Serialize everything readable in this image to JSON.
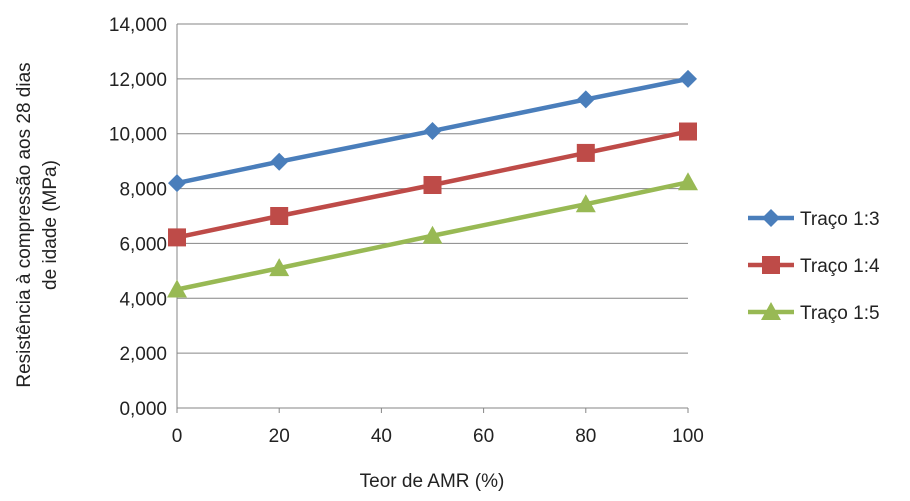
{
  "chart_data": {
    "type": "line",
    "title": "",
    "xlabel": "Teor de AMR (%)",
    "ylabel_lines": [
      "Resistência à compressão aos 28 dias",
      "de idade (MPa)"
    ],
    "x": [
      0,
      20,
      50,
      80,
      100
    ],
    "x_ticks": [
      "0",
      "20",
      "40",
      "60",
      "80",
      "100"
    ],
    "y_ticks": [
      "0,000",
      "2,000",
      "4,000",
      "6,000",
      "8,000",
      "10,000",
      "12,000",
      "14,000"
    ],
    "ylim": [
      0,
      14000
    ],
    "xlim": [
      0,
      100
    ],
    "grid": "horizontal",
    "legend_position": "right",
    "series": [
      {
        "name": "Traço 1:3",
        "color": "#4a7ebb",
        "marker": "diamond",
        "values": [
          8200,
          8980,
          10100,
          11250,
          12000
        ]
      },
      {
        "name": "Traço 1:4",
        "color": "#be4b48",
        "marker": "square",
        "values": [
          6220,
          7000,
          8130,
          9300,
          10080
        ]
      },
      {
        "name": "Traço 1:5",
        "color": "#98b954",
        "marker": "triangle",
        "values": [
          4320,
          5100,
          6280,
          7430,
          8230
        ]
      }
    ]
  }
}
